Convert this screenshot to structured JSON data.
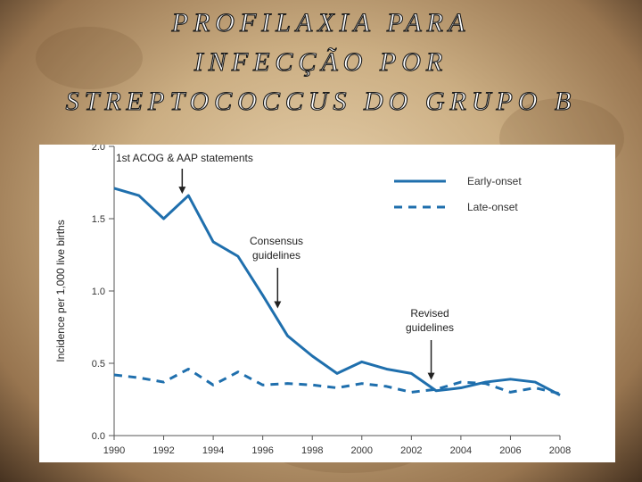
{
  "slide": {
    "title_lines": [
      "PROFILAXIA PARA",
      "INFECÇÃO POR",
      "STREPTOCOCCUS DO GRUPO B"
    ]
  },
  "chart_data": {
    "type": "line",
    "ylabel": "Incidence per 1,000 live births",
    "xlabel": "",
    "ylim": [
      0,
      2.0
    ],
    "xlim": [
      1990,
      2008
    ],
    "yticks": [
      0.0,
      0.5,
      1.0,
      1.5,
      2.0
    ],
    "ytick_labels": [
      "0.0",
      "0.5",
      "1.0",
      "1.5",
      "2.0"
    ],
    "xticks": [
      1990,
      1992,
      1994,
      1996,
      1998,
      2000,
      2002,
      2004,
      2006,
      2008
    ],
    "xtick_labels": [
      "1990",
      "1992",
      "1994",
      "1996",
      "1998",
      "2000",
      "2002",
      "2004",
      "2006",
      "2008"
    ],
    "grid": false,
    "legend": "top-right",
    "x": [
      1990,
      1991,
      1992,
      1993,
      1994,
      1995,
      1996,
      1997,
      1998,
      1999,
      2000,
      2001,
      2002,
      2003,
      2004,
      2005,
      2006,
      2007,
      2008
    ],
    "series": [
      {
        "name": "Early-onset",
        "style": "solid",
        "color": "#1f6fad",
        "values": [
          1.71,
          1.66,
          1.5,
          1.66,
          1.34,
          1.24,
          0.97,
          0.69,
          0.55,
          0.43,
          0.51,
          0.46,
          0.43,
          0.31,
          0.33,
          0.37,
          0.39,
          0.37,
          0.28
        ]
      },
      {
        "name": "Late-onset",
        "style": "dashed",
        "color": "#1f6fad",
        "values": [
          0.42,
          0.4,
          0.37,
          0.46,
          0.35,
          0.44,
          0.35,
          0.36,
          0.35,
          0.33,
          0.36,
          0.34,
          0.3,
          0.32,
          0.37,
          0.36,
          0.3,
          0.33,
          0.29
        ]
      }
    ],
    "annotations": [
      {
        "text": [
          "1st ACOG & AAP statements"
        ],
        "x": 1993,
        "y": 1.66
      },
      {
        "text": [
          "Consensus",
          "guidelines"
        ],
        "x": 1996.6,
        "y": 0.88
      },
      {
        "text": [
          "Revised",
          "guidelines"
        ],
        "x": 2002.8,
        "y": 0.36
      }
    ]
  }
}
